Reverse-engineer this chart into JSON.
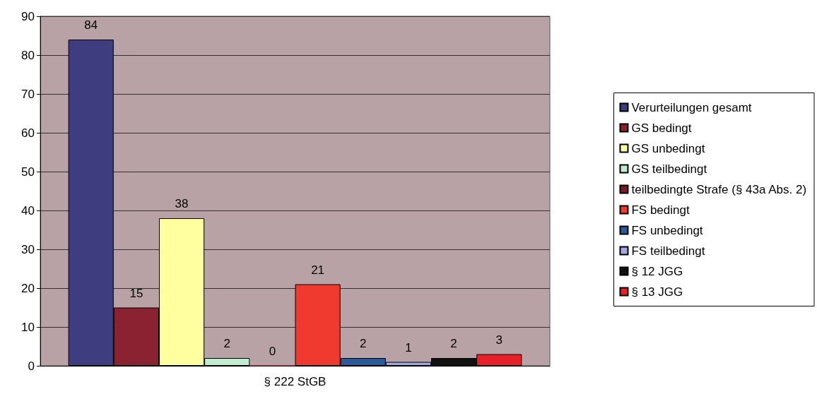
{
  "chart_data": {
    "type": "bar",
    "categories": [
      "§ 222 StGB"
    ],
    "series": [
      {
        "name": "Verurteilungen gesamt",
        "color": "#3d3d80",
        "values": [
          84
        ]
      },
      {
        "name": "GS bedingt",
        "color": "#8b2232",
        "values": [
          15
        ]
      },
      {
        "name": "GS unbedingt",
        "color": "#ffffa0",
        "values": [
          38
        ]
      },
      {
        "name": "GS teilbedingt",
        "color": "#c0ecd0",
        "values": [
          2
        ]
      },
      {
        "name": "teilbedingte Strafe (§ 43a Abs. 2)",
        "color": "#7a1a2a",
        "values": [
          0
        ]
      },
      {
        "name": "FS bedingt",
        "color": "#f03a30",
        "values": [
          21
        ]
      },
      {
        "name": "FS unbedingt",
        "color": "#2a5a9a",
        "values": [
          2
        ]
      },
      {
        "name": "FS teilbedingt",
        "color": "#a0a8e0",
        "values": [
          1
        ]
      },
      {
        "name": "§ 12 JGG",
        "color": "#111111",
        "values": [
          2
        ]
      },
      {
        "name": "§ 13 JGG",
        "color": "#e8202a",
        "values": [
          3
        ]
      }
    ],
    "ylim": [
      0,
      90
    ],
    "yticks": [
      0,
      10,
      20,
      30,
      40,
      50,
      60,
      70,
      80,
      90
    ],
    "grid": "y",
    "legend": "right",
    "data_labels": true
  }
}
